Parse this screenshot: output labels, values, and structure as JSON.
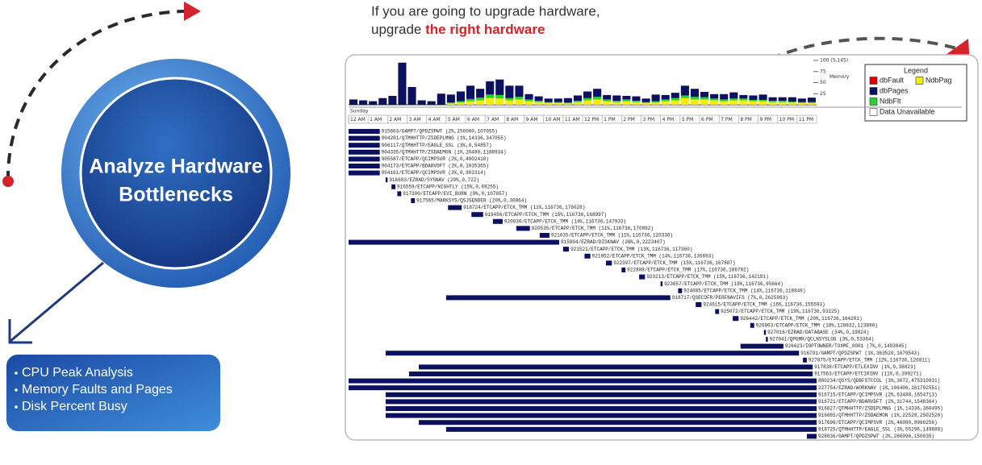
{
  "headline": {
    "line1": "If you are going to upgrade hardware,",
    "line2_start": "upgrade ",
    "line2_emphasis": "the right hardware"
  },
  "circle_title": [
    "Analyze Hardware",
    "Bottlenecks"
  ],
  "features": [
    "CPU Peak Analysis",
    "Memory Faults and Pages",
    "Disk Percent Busy"
  ],
  "memory": {
    "label": "Memory",
    "ylim": [
      0,
      100
    ],
    "yticks": [
      {
        "value": 100,
        "label": "100 (5,145)"
      },
      75,
      50,
      25
    ],
    "series": [
      {
        "name": "NdbPag",
        "color": "#f4ee00",
        "values": [
          0,
          0,
          0,
          0,
          0,
          0,
          0,
          0,
          0,
          0,
          3,
          5,
          8,
          10,
          15,
          14,
          10,
          12,
          8,
          6,
          4,
          4,
          3,
          6,
          10,
          12,
          8,
          6,
          8,
          6,
          4,
          5,
          8,
          10,
          15,
          12,
          12,
          10,
          8,
          10,
          10,
          8,
          8,
          6,
          6,
          5,
          4,
          4
        ]
      },
      {
        "name": "NdbFlt",
        "color": "#2bd12b",
        "values": [
          0,
          0,
          0,
          0,
          0,
          0,
          0,
          0,
          0,
          0,
          2,
          3,
          5,
          6,
          8,
          8,
          5,
          6,
          4,
          3,
          2,
          2,
          2,
          3,
          5,
          6,
          4,
          3,
          4,
          3,
          2,
          3,
          4,
          5,
          6,
          6,
          5,
          4,
          4,
          4,
          4,
          3,
          3,
          3,
          3,
          2,
          2,
          2
        ]
      },
      {
        "name": "dbPages",
        "color": "#0c1060",
        "values": [
          12,
          10,
          8,
          15,
          20,
          95,
          40,
          10,
          8,
          25,
          18,
          22,
          30,
          20,
          30,
          35,
          28,
          25,
          12,
          10,
          8,
          8,
          10,
          12,
          15,
          18,
          10,
          12,
          8,
          10,
          8,
          15,
          10,
          12,
          22,
          18,
          12,
          10,
          12,
          14,
          8,
          10,
          12,
          8,
          8,
          10,
          8,
          10
        ]
      }
    ]
  },
  "legend": {
    "title": "Legend",
    "items": [
      {
        "name": "dbFault",
        "color": "#e00000"
      },
      {
        "name": "NdbPag",
        "color": "#f4ee00"
      },
      {
        "name": "dbPages",
        "color": "#0c1060"
      },
      {
        "name": "NdbFlt",
        "color": "#2bd12b"
      },
      {
        "name": "Data Unavailable",
        "color": "#ffffff"
      }
    ]
  },
  "day": "Sunday",
  "xlim": [
    0,
    24
  ],
  "hours": [
    "12 AM",
    "1 AM",
    "2 AM",
    "3 AM",
    "4 AM",
    "5 AM",
    "6 AM",
    "7 AM",
    "8 AM",
    "9 AM",
    "10 AM",
    "11 AM",
    "12 PM",
    "1 PM",
    "2 PM",
    "3 PM",
    "4 PM",
    "5 PM",
    "6 PM",
    "7 PM",
    "8 PM",
    "9 PM",
    "10 PM",
    "11 PM"
  ],
  "jobs": [
    {
      "label": "915603/GAMPT/QPDZSPWT (2%,256000,107055)",
      "start": 0.0,
      "end": 1.6
    },
    {
      "label": "904281/QTMHHTTP/ZSDEPLMNG (1%,14336,347055)",
      "start": 0.0,
      "end": 1.6
    },
    {
      "label": "906117/QTMHHTTP/EAGLE_SSL (3%,0,54857)",
      "start": 0.0,
      "end": 1.6
    },
    {
      "label": "904335/QTMHHTTP/ZSDAEMON (1%,20480,1188934)",
      "start": 0.0,
      "end": 1.6
    },
    {
      "label": "905587/ETCAPP/QCIMPSVR (2%,0,4002418)",
      "start": 0.0,
      "end": 1.6
    },
    {
      "label": "904173/ETCAPP/BDARVDFT (2%,0,1035365)",
      "start": 0.0,
      "end": 1.6
    },
    {
      "label": "904161/ETCAPP/QCIMPSVR (2%,0,903314)",
      "start": 0.0,
      "end": 1.6
    },
    {
      "label": "916683/EZRAD/SYSNAV (20%,0,722)",
      "start": 1.9,
      "end": 2.0
    },
    {
      "label": "916559/ETCAPP/NIGHTLY (15%,0,69255)",
      "start": 2.2,
      "end": 2.4
    },
    {
      "label": "917300/ETCAPP/EVI_BURN (9%,0,107057)",
      "start": 2.5,
      "end": 2.7
    },
    {
      "label": "917565/MARKSYS/QSJSENDER (20%,0,30864)",
      "start": 3.2,
      "end": 3.4
    },
    {
      "label": "918724/ETCAPP/ETCK_TMM (11%,116736,176028)",
      "start": 5.1,
      "end": 5.8
    },
    {
      "label": "919456/ETCAPP/ETCK_TMM (15%,116736,168997)",
      "start": 6.3,
      "end": 6.9
    },
    {
      "label": "920030/ETCAPP/ETCK_TMM (14%,116736,147933)",
      "start": 7.4,
      "end": 7.9
    },
    {
      "label": "920535/ETCAPP/ETCK_TMM (11%,116736,170892)",
      "start": 8.6,
      "end": 9.3
    },
    {
      "label": "921035/ETCAPP/ETCK_TMM (11%,116736,120336)",
      "start": 9.8,
      "end": 10.3
    },
    {
      "label": "915904/EZRAD/DISKNAV (26%,0,2223407)",
      "start": 0.0,
      "end": 10.8
    },
    {
      "label": "921521/ETCAPP/ETCK_TMM (13%,116736,117360)",
      "start": 11.0,
      "end": 11.3
    },
    {
      "label": "921952/ETCAPP/ETCK_TMM (14%,116736,136693)",
      "start": 12.1,
      "end": 12.4
    },
    {
      "label": "922397/ETCAPP/ETCK_TMM (15%,116736,167887)",
      "start": 13.2,
      "end": 13.5
    },
    {
      "label": "922808/ETCAPP/ETCK_TMM (17%,116736,106782)",
      "start": 14.0,
      "end": 14.2
    },
    {
      "label": "923213/ETCAPP/ETCK_TMM (15%,116736,142181)",
      "start": 14.9,
      "end": 15.2
    },
    {
      "label": "923657/ETCAPP/ETCK_TMM (19%,116736,95664)",
      "start": 16.0,
      "end": 16.1
    },
    {
      "label": "924085/ETCAPP/ETCK_TMM (14%,116736,118846)",
      "start": 16.9,
      "end": 17.1
    },
    {
      "label": "918717/QSECOFR/PERFNAVIFS (7%,0,2625963)",
      "start": 5.0,
      "end": 16.5
    },
    {
      "label": "924615/ETCAPP/ETCK_TMM (16%,116736,155593)",
      "start": 17.8,
      "end": 18.1
    },
    {
      "label": "925072/ETCAPP/ETCK_TMM (19%,116736,93225)",
      "start": 18.8,
      "end": 19.0
    },
    {
      "label": "926442/ETCAPP/ETCK_TMM (20%,116736,164201)",
      "start": 19.7,
      "end": 20.0
    },
    {
      "label": "926803/ETCAPP/ETCK_TMM (18%,120832,123880)",
      "start": 20.6,
      "end": 20.8
    },
    {
      "label": "927016/EZRAD/DATABASE (34%,0,19824)",
      "start": 21.3,
      "end": 21.4
    },
    {
      "label": "927041/QPGMR/QCLNSYSLOG (3%,0,53364)",
      "start": 21.4,
      "end": 21.5
    },
    {
      "label": "926623/IOPTOWNER/TOXMF_0001 (7%,0,1493845)",
      "start": 20.1,
      "end": 22.3
    },
    {
      "label": "916791/GAMPT/QPDZSPWT (1%,363520,1679543)",
      "start": 1.9,
      "end": 23.1
    },
    {
      "label": "927875/ETCAPP/ETCK_TMM (12%,116736,126811)",
      "start": 23.3,
      "end": 23.5
    },
    {
      "label": "917838/ETCAPP/ETLEXINV (1%,0,38823)",
      "start": 3.6,
      "end": 23.8
    },
    {
      "label": "917563/ETCAPP/ETCIRINV (11%,0,399271)",
      "start": 3.1,
      "end": 23.8
    },
    {
      "label": "880234/QSYS/QDBFSTCCOL (3%,3072,475310931)",
      "start": 0.0,
      "end": 24.0
    },
    {
      "label": "227754/EZRAD/WORKNAV (1%,106406,161792551)",
      "start": 0.0,
      "end": 24.0
    },
    {
      "label": "916715/ETCAPP/QCIMPSVR (2%,63488,1654713)",
      "start": 1.9,
      "end": 24.0
    },
    {
      "label": "916721/ETCAPP/BDARVDFT (2%,31744,1548364)",
      "start": 1.9,
      "end": 24.0
    },
    {
      "label": "916827/QTMHHTTP/ZSDEPLMNG (1%,14336,360495)",
      "start": 1.9,
      "end": 24.0
    },
    {
      "label": "916885/QTMHHTTP/ZSDAEMON (1%,22528,2502520)",
      "start": 1.9,
      "end": 24.0
    },
    {
      "label": "917696/ETCAPP/QCIMPSVR (2%,46080,8966256)",
      "start": 3.6,
      "end": 24.0
    },
    {
      "label": "918725/QTMHHTTP/EAGLE_SSL (3%,55296,149888)",
      "start": 5.0,
      "end": 24.0
    },
    {
      "label": "928036/GAMPT/QPDZSPWT (2%,260096,150035)",
      "start": 23.5,
      "end": 24.0
    }
  ]
}
